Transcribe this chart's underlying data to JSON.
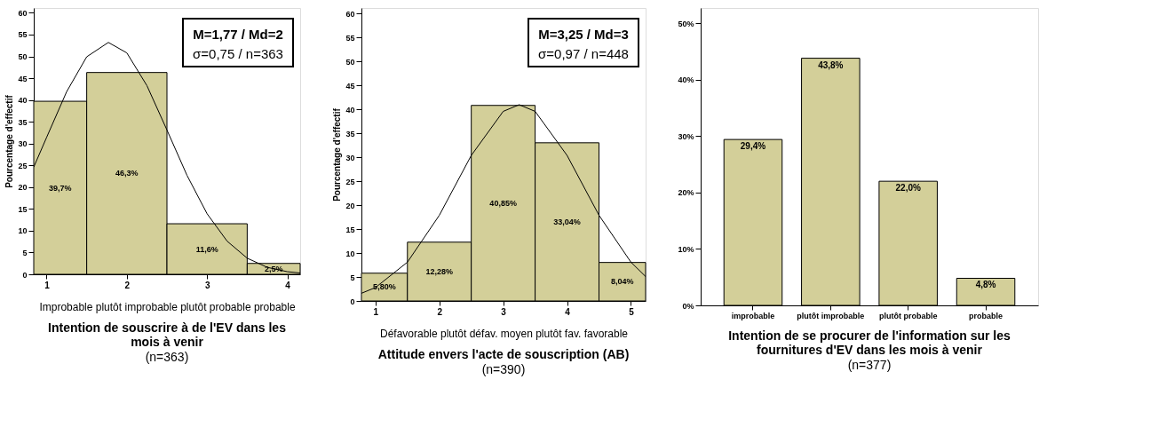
{
  "chart_data": [
    {
      "type": "histogram",
      "title": "Intention de souscrire à de l'EV dans les mois à venir",
      "subtitle": "(n=363)",
      "ylabel": "Pourcentage d'effectif",
      "xlabel": "Improbable  plutôt improbable   plutôt probable  probable",
      "bins": [
        0.84,
        1.5,
        2.5,
        3.5,
        4.16
      ],
      "values": [
        39.7,
        46.3,
        11.6,
        2.5
      ],
      "color": "#d3cf99",
      "value_labels": [
        "39,7%",
        "46,3%",
        "11,6%",
        "2,5%"
      ],
      "series": [
        {
          "type": "line",
          "color": "#000000",
          "x": [
            0.84,
            1.0,
            1.25,
            1.5,
            1.77,
            2.0,
            2.25,
            2.5,
            2.75,
            3.0,
            3.25,
            3.5,
            3.75,
            4.0,
            4.16
          ],
          "values": [
            24.6,
            31.4,
            41.9,
            49.9,
            53.2,
            50.8,
            43.3,
            33.1,
            22.7,
            13.9,
            7.6,
            3.7,
            1.6,
            0.6,
            0.3
          ]
        }
      ],
      "annotations": [
        "M=1,77 / Md=2",
        "σ=0,75 / n=363"
      ],
      "xlim": [
        0.84,
        4.16
      ],
      "xticks": [
        1,
        2,
        3,
        4
      ],
      "ylim": [
        0,
        61.1
      ],
      "yticks": [
        0,
        5,
        10,
        15,
        20,
        25,
        30,
        35,
        40,
        45,
        50,
        55,
        60
      ],
      "grid": false
    },
    {
      "type": "histogram",
      "title": "Attitude envers l'acte de souscription (AB)",
      "subtitle": "(n=390)",
      "ylabel": "Pourcentage d'effectif",
      "xlabel": "Défavorable  plutôt défav.   moyen       plutôt fav.   favorable",
      "bins": [
        0.78,
        1.5,
        2.5,
        3.5,
        4.5,
        5.23
      ],
      "values": [
        5.8,
        12.28,
        40.85,
        33.04,
        8.04
      ],
      "color": "#d3cf99",
      "value_labels": [
        "5,80%",
        "12,28%",
        "40,85%",
        "33,04%",
        "8,04%"
      ],
      "series": [
        {
          "type": "line",
          "color": "#000000",
          "x": [
            0.78,
            1.0,
            1.5,
            2.0,
            2.5,
            3.0,
            3.25,
            3.5,
            4.0,
            4.5,
            5.0,
            5.23
          ],
          "values": [
            1.6,
            2.8,
            8.1,
            17.9,
            30.4,
            39.6,
            41.0,
            39.6,
            30.4,
            17.9,
            8.1,
            5.1
          ]
        }
      ],
      "annotations": [
        "M=3,25 / Md=3",
        "σ=0,97 / n=448"
      ],
      "xlim": [
        0.78,
        5.23
      ],
      "xticks": [
        1,
        2,
        3,
        4,
        5
      ],
      "ylim": [
        0,
        61.2
      ],
      "yticks": [
        0,
        5,
        10,
        15,
        20,
        25,
        30,
        35,
        40,
        45,
        50,
        55,
        60
      ],
      "grid": false
    },
    {
      "type": "bar",
      "title": "Intention de se procurer de l'information sur les fournitures d'EV dans les mois à venir",
      "subtitle": "(n=377)",
      "categories": [
        "improbable",
        "plutôt improbable",
        "plutôt probable",
        "probable"
      ],
      "values": [
        29.4,
        43.8,
        22.0,
        4.8
      ],
      "color": "#d3cf99",
      "value_labels": [
        "29,4%",
        "43,8%",
        "22,0%",
        "4,8%"
      ],
      "ylim": [
        0,
        52.7
      ],
      "yticks": [
        {
          "value": 0,
          "label": "0%"
        },
        {
          "value": 10,
          "label": "10%"
        },
        {
          "value": 20,
          "label": "20%"
        },
        {
          "value": 30,
          "label": "30%"
        },
        {
          "value": 40,
          "label": "40%"
        },
        {
          "value": 50,
          "label": "50%"
        }
      ],
      "grid": false
    }
  ]
}
